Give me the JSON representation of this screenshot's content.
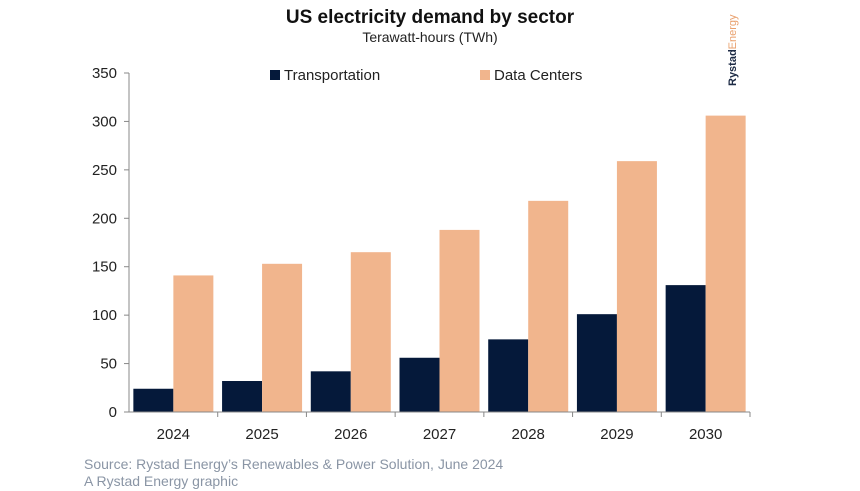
{
  "chart_data": {
    "type": "bar",
    "title": "US electricity demand by sector",
    "subtitle": "Terawatt-hours (TWh)",
    "categories": [
      "2024",
      "2025",
      "2026",
      "2027",
      "2028",
      "2029",
      "2030"
    ],
    "series": [
      {
        "name": "Transportation",
        "color": "#05193a",
        "values": [
          24,
          32,
          42,
          56,
          75,
          101,
          131
        ]
      },
      {
        "name": "Data Centers",
        "color": "#f1b58d",
        "values": [
          141,
          153,
          165,
          188,
          218,
          259,
          306
        ]
      }
    ],
    "ylim": [
      0,
      350
    ],
    "yticks": [
      0,
      50,
      100,
      150,
      200,
      250,
      300,
      350
    ],
    "grid": false,
    "legend": "top"
  },
  "footer": {
    "source": "Source: Rystad Energy’s Renewables & Power Solution, June 2024",
    "credit": "A Rystad Energy graphic"
  },
  "logo": {
    "text_a": "Rystad",
    "text_b": "Energy",
    "color_a": "#1c2a44",
    "color_b": "#e9a06d"
  }
}
